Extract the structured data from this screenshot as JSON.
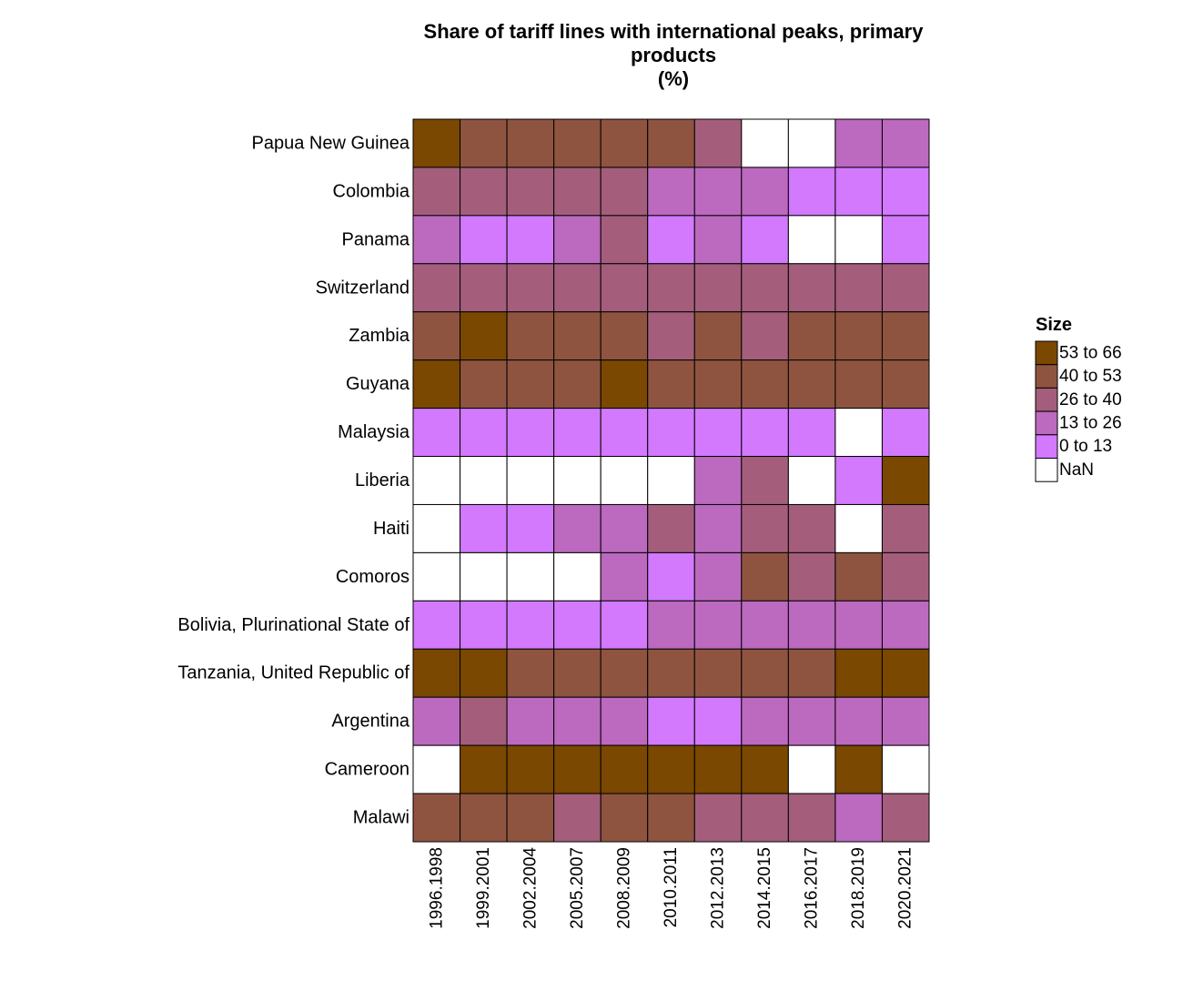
{
  "chart_data": {
    "type": "heatmap",
    "title": [
      "Share of tariff lines with international peaks, primary",
      "products",
      "(%)"
    ],
    "rows": [
      "Papua New Guinea",
      "Colombia",
      "Panama",
      "Switzerland",
      "Zambia",
      "Guyana",
      "Malaysia",
      "Liberia",
      "Haiti",
      "Comoros",
      "Bolivia, Plurinational State of",
      "Tanzania, United Republic of",
      "Argentina",
      "Cameroon",
      "Malawi"
    ],
    "columns": [
      "1996.1998",
      "1999.2001",
      "2002.2004",
      "2005.2007",
      "2008.2009",
      "2010.2011",
      "2012.2013",
      "2014.2015",
      "2016.2017",
      "2018.2019",
      "2020.2021"
    ],
    "legend": {
      "title": "Size",
      "position": "right",
      "bins": [
        {
          "label": "53 to 66",
          "color": "#7a4800"
        },
        {
          "label": "40 to 53",
          "color": "#8f5440"
        },
        {
          "label": "26 to 40",
          "color": "#a45e7c"
        },
        {
          "label": "13 to 26",
          "color": "#bc69c0"
        },
        {
          "label": "0 to 13",
          "color": "#d279fd"
        },
        {
          "label": "NaN",
          "color": "#ffffff"
        }
      ]
    },
    "cells": [
      [
        "53 to 66",
        "40 to 53",
        "40 to 53",
        "40 to 53",
        "40 to 53",
        "40 to 53",
        "26 to 40",
        "NaN",
        "NaN",
        "13 to 26",
        "13 to 26"
      ],
      [
        "26 to 40",
        "26 to 40",
        "26 to 40",
        "26 to 40",
        "26 to 40",
        "13 to 26",
        "13 to 26",
        "13 to 26",
        "0 to 13",
        "0 to 13",
        "0 to 13"
      ],
      [
        "13 to 26",
        "0 to 13",
        "0 to 13",
        "13 to 26",
        "26 to 40",
        "0 to 13",
        "13 to 26",
        "0 to 13",
        "NaN",
        "NaN",
        "0 to 13"
      ],
      [
        "26 to 40",
        "26 to 40",
        "26 to 40",
        "26 to 40",
        "26 to 40",
        "26 to 40",
        "26 to 40",
        "26 to 40",
        "26 to 40",
        "26 to 40",
        "26 to 40"
      ],
      [
        "40 to 53",
        "53 to 66",
        "40 to 53",
        "40 to 53",
        "40 to 53",
        "26 to 40",
        "40 to 53",
        "26 to 40",
        "40 to 53",
        "40 to 53",
        "40 to 53"
      ],
      [
        "53 to 66",
        "40 to 53",
        "40 to 53",
        "40 to 53",
        "53 to 66",
        "40 to 53",
        "40 to 53",
        "40 to 53",
        "40 to 53",
        "40 to 53",
        "40 to 53"
      ],
      [
        "0 to 13",
        "0 to 13",
        "0 to 13",
        "0 to 13",
        "0 to 13",
        "0 to 13",
        "0 to 13",
        "0 to 13",
        "0 to 13",
        "NaN",
        "0 to 13"
      ],
      [
        "NaN",
        "NaN",
        "NaN",
        "NaN",
        "NaN",
        "NaN",
        "13 to 26",
        "26 to 40",
        "NaN",
        "0 to 13",
        "53 to 66"
      ],
      [
        "NaN",
        "0 to 13",
        "0 to 13",
        "13 to 26",
        "13 to 26",
        "26 to 40",
        "13 to 26",
        "26 to 40",
        "26 to 40",
        "NaN",
        "26 to 40"
      ],
      [
        "NaN",
        "NaN",
        "NaN",
        "NaN",
        "13 to 26",
        "0 to 13",
        "13 to 26",
        "40 to 53",
        "26 to 40",
        "40 to 53",
        "26 to 40"
      ],
      [
        "0 to 13",
        "0 to 13",
        "0 to 13",
        "0 to 13",
        "0 to 13",
        "13 to 26",
        "13 to 26",
        "13 to 26",
        "13 to 26",
        "13 to 26",
        "13 to 26"
      ],
      [
        "53 to 66",
        "53 to 66",
        "40 to 53",
        "40 to 53",
        "40 to 53",
        "40 to 53",
        "40 to 53",
        "40 to 53",
        "40 to 53",
        "53 to 66",
        "53 to 66"
      ],
      [
        "13 to 26",
        "26 to 40",
        "13 to 26",
        "13 to 26",
        "13 to 26",
        "0 to 13",
        "0 to 13",
        "13 to 26",
        "13 to 26",
        "13 to 26",
        "13 to 26"
      ],
      [
        "NaN",
        "53 to 66",
        "53 to 66",
        "53 to 66",
        "53 to 66",
        "53 to 66",
        "53 to 66",
        "53 to 66",
        "NaN",
        "53 to 66",
        "NaN"
      ],
      [
        "40 to 53",
        "40 to 53",
        "40 to 53",
        "26 to 40",
        "40 to 53",
        "40 to 53",
        "26 to 40",
        "26 to 40",
        "26 to 40",
        "13 to 26",
        "26 to 40"
      ]
    ]
  }
}
